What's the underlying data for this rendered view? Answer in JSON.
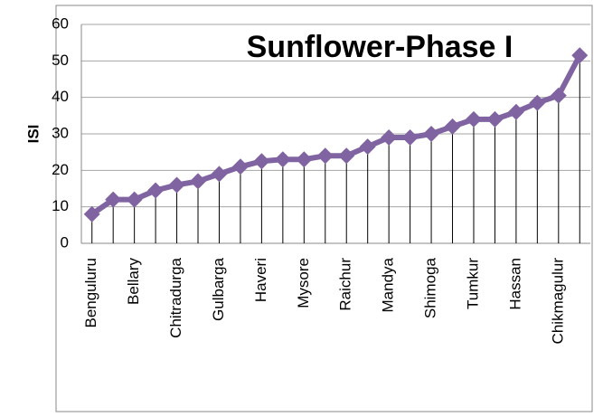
{
  "chart_data": {
    "type": "line",
    "title": "Sunflower-Phase I",
    "y_label": "ISI",
    "categories": [
      "Benguluru",
      null,
      "Bellary",
      null,
      "Chitradurga",
      null,
      "Gulbarga",
      null,
      "Haveri",
      null,
      "Mysore",
      null,
      "Raichur",
      null,
      "Mandya",
      null,
      "Shimoga",
      null,
      "Tumkur",
      null,
      "Hassan",
      null,
      "Chikmagulur",
      null
    ],
    "series": [
      {
        "name": "ISI",
        "color": "#8064a2",
        "values": [
          8,
          12,
          12,
          14.5,
          16,
          17,
          19,
          21,
          22.5,
          23,
          23,
          24,
          24,
          26.5,
          29,
          29,
          30,
          32,
          34,
          34,
          36,
          38.5,
          40.5,
          51.5
        ]
      }
    ],
    "ylim": [
      0,
      60
    ],
    "yticks": [
      0,
      10,
      20,
      30,
      40,
      50,
      60
    ],
    "grid": true,
    "drop_lines": true
  }
}
